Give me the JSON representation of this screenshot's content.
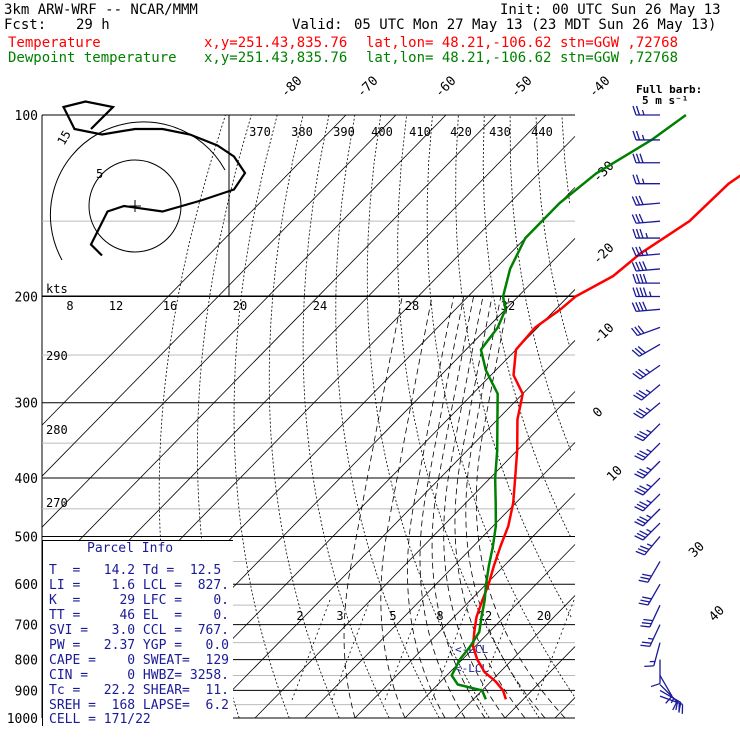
{
  "header": {
    "model": "3km ARW-WRF -- NCAR/MMM",
    "init_label": "Init:",
    "init": "00 UTC Sun 26 May 13",
    "fcst_label": "Fcst:",
    "fcst": "29 h",
    "valid_label": "Valid:",
    "valid": "05 UTC Mon 27 May 13 (23 MDT Sun 26 May 13)"
  },
  "traces": [
    {
      "name": "Temperature",
      "color": "#ff0000",
      "xy": "x,y=251.43,835.76",
      "latlon": "lat,lon= 48.21,-106.62",
      "stn": "stn=GGW ,72768"
    },
    {
      "name": "Dewpoint temperature",
      "color": "#008000",
      "xy": "x,y=251.43,835.76",
      "latlon": "lat,lon= 48.21,-106.62",
      "stn": "stn=GGW ,72768"
    }
  ],
  "barb_legend": {
    "line1": "Full barb:",
    "line2": "5 m s⁻¹"
  },
  "parcel_info": {
    "title": "Parcel Info",
    "rows": [
      "T  =   14.2 Td =  12.5",
      "LI =    1.6 LCL =  827.",
      "K  =     29 LFC =    0.",
      "TT =     46 EL  =    0.",
      "SVI =   3.0 CCL =  767.",
      "PW =   2.37 YGP =   0.0",
      "CAPE =    0 SWEAT=  129",
      "CIN =     0 HWBZ= 3258.",
      "Tc =   22.2 SHEAR=  11.",
      "SREH =  168 LAPSE=  6.2",
      "CELL = 171/22"
    ]
  },
  "hodograph": {
    "units_label": "kts",
    "ring_labels": [
      "5",
      "15"
    ]
  },
  "chart_data": {
    "type": "line",
    "title": "",
    "ylabel": "",
    "xlabel": "",
    "y_axis_log_pressure": true,
    "pressure_ticks": [
      100,
      200,
      300,
      400,
      500,
      600,
      700,
      800,
      900,
      1000
    ],
    "temperature_tick_labels": [
      "-80",
      "-70",
      "-60",
      "-50",
      "-40",
      "-30",
      "-20",
      "-10",
      "0",
      "10",
      "30",
      "40"
    ],
    "potential_temperature_labels": [
      "370",
      "380",
      "390",
      "400",
      "410",
      "420",
      "430",
      "440"
    ],
    "wetbulb_labels": [
      "8",
      "12",
      "16",
      "20",
      "24",
      "28",
      "32"
    ],
    "dry_adiabat_labels": [
      "290",
      "280",
      "270"
    ],
    "mixing_ratio_labels": [
      "2",
      "3",
      "5",
      "8",
      "12",
      "20"
    ],
    "lcl_labels": [
      "<-LCL",
      "<-LCL"
    ],
    "series": [
      {
        "name": "Temperature",
        "color": "#ff0000",
        "points": [
          [
            931,
            16.5
          ],
          [
            900,
            14.2
          ],
          [
            870,
            11
          ],
          [
            840,
            7
          ],
          [
            800,
            3
          ],
          [
            760,
            -0.5
          ],
          [
            720,
            -3
          ],
          [
            680,
            -5.5
          ],
          [
            640,
            -7.5
          ],
          [
            600,
            -9.5
          ],
          [
            560,
            -12
          ],
          [
            520,
            -14.5
          ],
          [
            480,
            -17
          ],
          [
            440,
            -20.5
          ],
          [
            400,
            -25
          ],
          [
            360,
            -30
          ],
          [
            320,
            -36
          ],
          [
            290,
            -40
          ],
          [
            270,
            -45.5
          ],
          [
            245,
            -50
          ],
          [
            225,
            -50.5
          ],
          [
            210,
            -49
          ],
          [
            200,
            -48.5
          ],
          [
            185,
            -45
          ],
          [
            170,
            -44
          ],
          [
            150,
            -40.5
          ],
          [
            130,
            -40
          ],
          [
            115,
            -37
          ],
          [
            100,
            -34.5
          ]
        ]
      },
      {
        "name": "Dewpoint temperature",
        "color": "#008000",
        "points": [
          [
            931,
            12.5
          ],
          [
            900,
            10
          ],
          [
            880,
            4
          ],
          [
            850,
            1
          ],
          [
            800,
            -0.5
          ],
          [
            760,
            -1
          ],
          [
            720,
            -2
          ],
          [
            680,
            -4.5
          ],
          [
            640,
            -7
          ],
          [
            600,
            -10
          ],
          [
            560,
            -13
          ],
          [
            520,
            -16
          ],
          [
            480,
            -19.5
          ],
          [
            440,
            -24
          ],
          [
            400,
            -29
          ],
          [
            360,
            -34
          ],
          [
            320,
            -40
          ],
          [
            290,
            -45
          ],
          [
            265,
            -52
          ],
          [
            245,
            -57
          ],
          [
            225,
            -58
          ],
          [
            210,
            -60
          ],
          [
            200,
            -63
          ],
          [
            180,
            -67
          ],
          [
            160,
            -70
          ],
          [
            140,
            -70
          ],
          [
            125,
            -68.5
          ],
          [
            110,
            -64
          ],
          [
            100,
            -62
          ]
        ]
      }
    ],
    "winds": [
      {
        "p": 100,
        "dir": 270,
        "spd": 25
      },
      {
        "p": 110,
        "dir": 270,
        "spd": 25
      },
      {
        "p": 120,
        "dir": 270,
        "spd": 30
      },
      {
        "p": 130,
        "dir": 270,
        "spd": 25
      },
      {
        "p": 140,
        "dir": 265,
        "spd": 30
      },
      {
        "p": 150,
        "dir": 265,
        "spd": 30
      },
      {
        "p": 160,
        "dir": 270,
        "spd": 35
      },
      {
        "p": 170,
        "dir": 265,
        "spd": 35
      },
      {
        "p": 180,
        "dir": 265,
        "spd": 40
      },
      {
        "p": 190,
        "dir": 270,
        "spd": 40
      },
      {
        "p": 200,
        "dir": 270,
        "spd": 45
      },
      {
        "p": 210,
        "dir": 265,
        "spd": 40
      },
      {
        "p": 225,
        "dir": 250,
        "spd": 30
      },
      {
        "p": 240,
        "dir": 240,
        "spd": 30
      },
      {
        "p": 260,
        "dir": 235,
        "spd": 35
      },
      {
        "p": 280,
        "dir": 230,
        "spd": 35
      },
      {
        "p": 300,
        "dir": 230,
        "spd": 35
      },
      {
        "p": 325,
        "dir": 225,
        "spd": 35
      },
      {
        "p": 350,
        "dir": 225,
        "spd": 35
      },
      {
        "p": 375,
        "dir": 225,
        "spd": 35
      },
      {
        "p": 400,
        "dir": 225,
        "spd": 35
      },
      {
        "p": 425,
        "dir": 225,
        "spd": 35
      },
      {
        "p": 450,
        "dir": 225,
        "spd": 35
      },
      {
        "p": 475,
        "dir": 225,
        "spd": 35
      },
      {
        "p": 500,
        "dir": 220,
        "spd": 35
      },
      {
        "p": 550,
        "dir": 210,
        "spd": 30
      },
      {
        "p": 600,
        "dir": 210,
        "spd": 30
      },
      {
        "p": 650,
        "dir": 205,
        "spd": 30
      },
      {
        "p": 700,
        "dir": 205,
        "spd": 25
      },
      {
        "p": 750,
        "dir": 195,
        "spd": 15
      },
      {
        "p": 800,
        "dir": 180,
        "spd": 10
      },
      {
        "p": 850,
        "dir": 150,
        "spd": 10
      },
      {
        "p": 880,
        "dir": 135,
        "spd": 15
      },
      {
        "p": 900,
        "dir": 120,
        "spd": 20
      },
      {
        "p": 920,
        "dir": 110,
        "spd": 20
      }
    ],
    "hodograph_trace": [
      [
        -8,
        14
      ],
      [
        -6,
        16
      ],
      [
        -4,
        18
      ],
      [
        -9,
        19
      ],
      [
        -13,
        18
      ],
      [
        -11,
        14
      ],
      [
        -6,
        13
      ],
      [
        0,
        14
      ],
      [
        5,
        14
      ],
      [
        10,
        13
      ],
      [
        15,
        11
      ],
      [
        18,
        9
      ],
      [
        20,
        6
      ],
      [
        18,
        3
      ],
      [
        12,
        1
      ],
      [
        5,
        -1
      ],
      [
        -2,
        0
      ],
      [
        -5,
        -1
      ],
      [
        -6,
        -3
      ],
      [
        -7,
        -5
      ],
      [
        -8,
        -7
      ],
      [
        -6,
        -9
      ]
    ],
    "grid": true
  }
}
